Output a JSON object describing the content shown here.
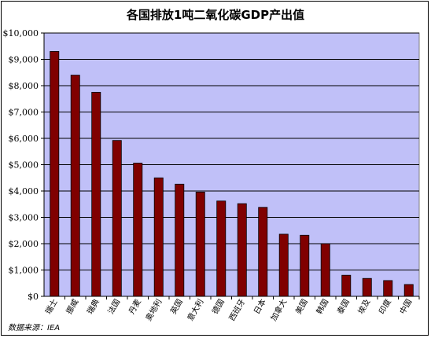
{
  "chart_data": {
    "type": "bar",
    "title": "各国排放1吨二氧化碳GDP产出值",
    "source": "数据来源：IEA",
    "xlabel": "",
    "ylabel": "",
    "categories": [
      "瑞士",
      "挪威",
      "瑞典",
      "法国",
      "丹麦",
      "奥地利",
      "英国",
      "意大利",
      "德国",
      "西班牙",
      "日本",
      "加拿大",
      "美国",
      "韩国",
      "泰国",
      "埃及",
      "印度",
      "中国"
    ],
    "series": [
      {
        "values": [
          9300,
          8400,
          7750,
          5920,
          5060,
          4500,
          4260,
          3960,
          3620,
          3520,
          3380,
          2360,
          2320,
          2000,
          800,
          680,
          600,
          450
        ]
      }
    ],
    "ylim": [
      0,
      10000
    ],
    "yticks": [
      0,
      1000,
      2000,
      3000,
      4000,
      5000,
      6000,
      7000,
      8000,
      9000,
      10000
    ],
    "ytick_labels": [
      "$0",
      "$1,000",
      "$2,000",
      "$3,000",
      "$4,000",
      "$5,000",
      "$6,000",
      "$7,000",
      "$8,000",
      "$9,000",
      "$10,000"
    ],
    "grid": true,
    "legend": "none",
    "colors": {
      "bar": "#800000",
      "plot_bg": "#c0c0f8",
      "grid": "#000000"
    }
  }
}
